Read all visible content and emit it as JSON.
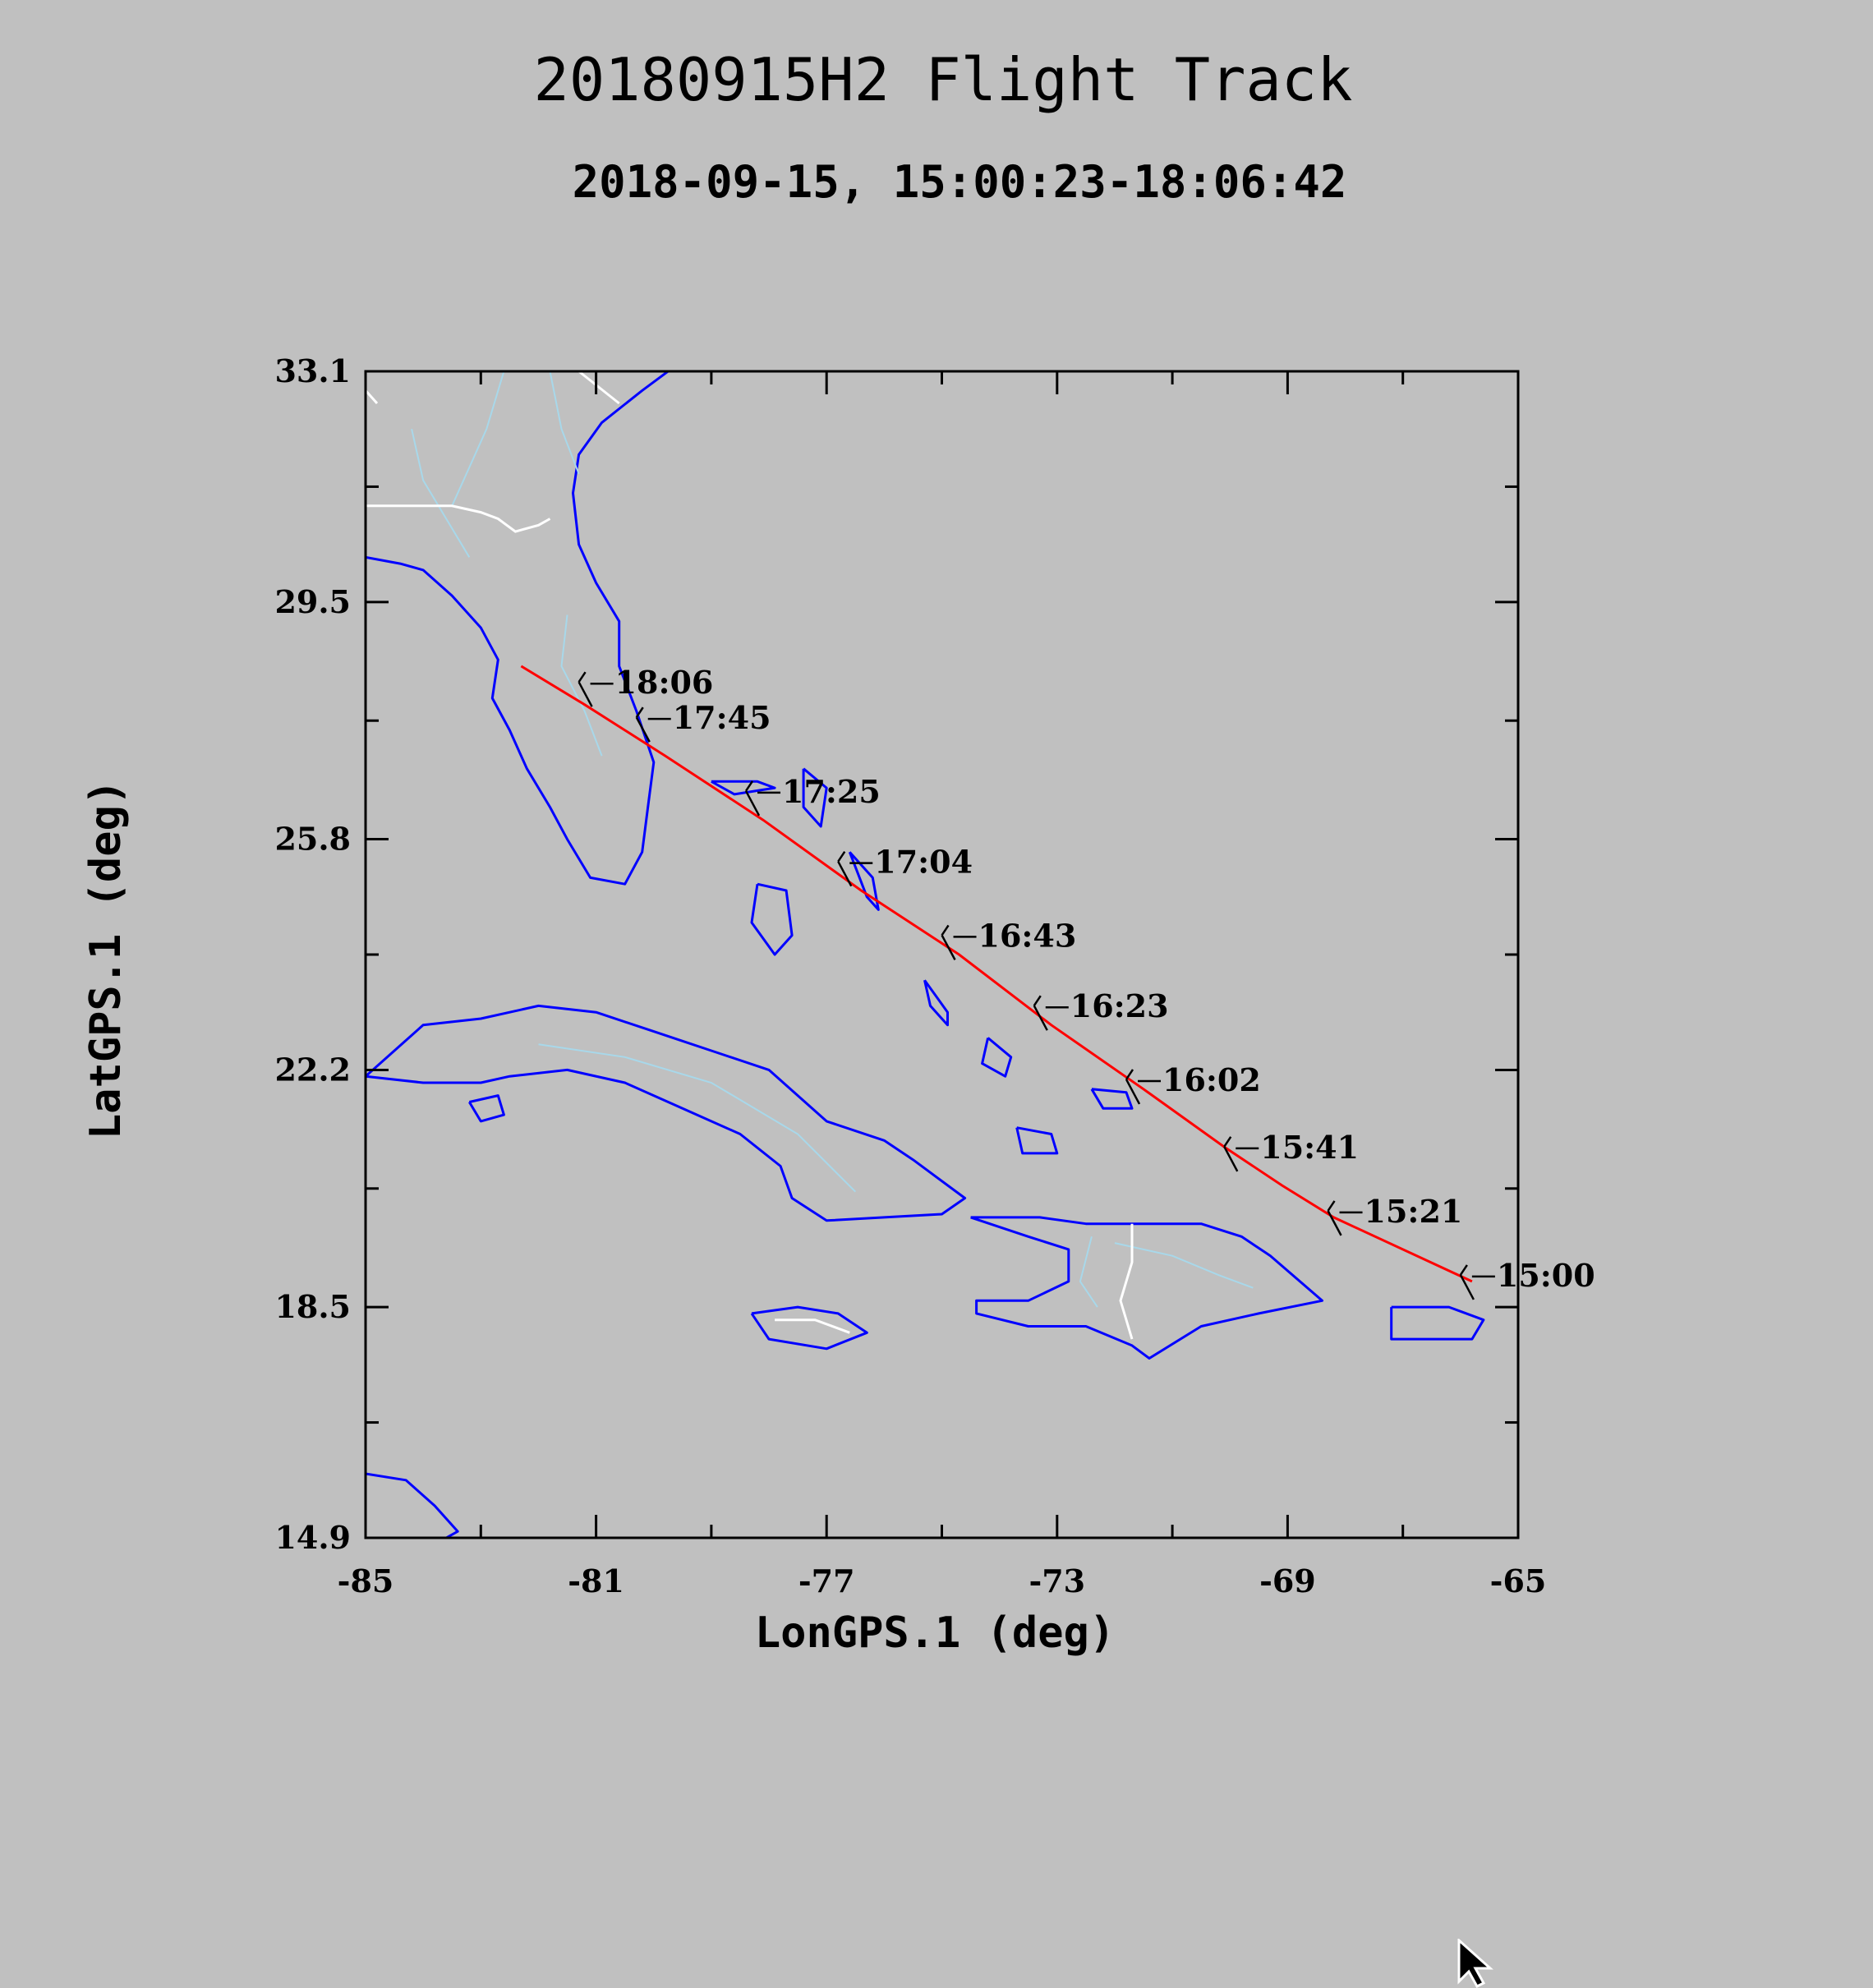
{
  "title": "20180915H2 Flight Track",
  "subtitle": "2018-09-15, 15:00:23-18:06:42",
  "colors": {
    "background": "#c0c0c0",
    "track": "#ff0000",
    "coastline": "#0000ff",
    "rivers": "#a8d8ea",
    "borders": "#ffffff",
    "axis": "#000000",
    "wind_barb": "#000000"
  },
  "chart_data": {
    "type": "line",
    "title": "20180915H2 Flight Track",
    "subtitle": "2018-09-15, 15:00:23-18:06:42",
    "xlabel": "LonGPS.1 (deg)",
    "ylabel": "LatGPS.1 (deg)",
    "xlim": [
      -85,
      -65
    ],
    "ylim": [
      14.9,
      33.1
    ],
    "xticks": [
      -85,
      -81,
      -77,
      -73,
      -69,
      -65
    ],
    "xtick_labels": [
      "-85",
      "-81",
      "-77",
      "-73",
      "-69",
      "-65"
    ],
    "yticks": [
      14.9,
      18.5,
      22.2,
      25.8,
      29.5,
      33.1
    ],
    "ytick_labels": [
      "14.9",
      "18.5",
      "22.2",
      "25.8",
      "29.5",
      "33.1"
    ],
    "grid": false,
    "series": [
      {
        "track_points": [
          {
            "lon": -65.8,
            "lat": 18.9
          },
          {
            "lon": -68.2,
            "lat": 19.9
          },
          {
            "lon": -69.1,
            "lat": 20.4
          },
          {
            "lon": -70.1,
            "lat": 21.0
          },
          {
            "lon": -71.5,
            "lat": 21.9
          },
          {
            "lon": -73.1,
            "lat": 22.9
          },
          {
            "lon": -74.7,
            "lat": 24.0
          },
          {
            "lon": -76.4,
            "lat": 25.0
          },
          {
            "lon": -78.1,
            "lat": 26.1
          },
          {
            "lon": -79.8,
            "lat": 27.1
          },
          {
            "lon": -81.2,
            "lat": 27.9
          },
          {
            "lon": -82.3,
            "lat": 28.5
          }
        ]
      }
    ],
    "time_labels": [
      {
        "time": "15:00",
        "lon": -65.8,
        "lat": 18.9
      },
      {
        "time": "15:21",
        "lon": -68.1,
        "lat": 19.9
      },
      {
        "time": "15:41",
        "lon": -69.9,
        "lat": 20.9
      },
      {
        "time": "16:02",
        "lon": -71.6,
        "lat": 21.95
      },
      {
        "time": "16:23",
        "lon": -73.2,
        "lat": 23.1
      },
      {
        "time": "16:43",
        "lon": -74.8,
        "lat": 24.2
      },
      {
        "time": "17:04",
        "lon": -76.6,
        "lat": 25.35
      },
      {
        "time": "17:25",
        "lon": -78.2,
        "lat": 26.45
      },
      {
        "time": "17:45",
        "lon": -80.1,
        "lat": 27.6
      },
      {
        "time": "18:06",
        "lon": -81.1,
        "lat": 28.15
      }
    ]
  }
}
